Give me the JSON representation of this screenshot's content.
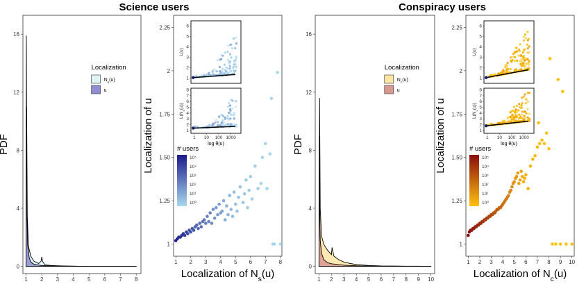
{
  "titles": {
    "science": "Science users",
    "conspiracy": "Conspiracy users"
  },
  "chart_data": [
    {
      "id": "sci-pdf",
      "type": "area",
      "title": "",
      "xlabel": "",
      "ylabel": "PDF",
      "xlim": [
        0.8,
        8.3
      ],
      "ylim": [
        -0.5,
        17.3
      ],
      "xticks": [
        "1",
        "2",
        "3",
        "4",
        "5",
        "6",
        "7",
        "8"
      ],
      "yticks": [
        "0",
        "4",
        "8",
        "12",
        "16"
      ],
      "legend": {
        "title": "Localization",
        "entries": [
          "N_s(u)",
          "u"
        ],
        "colors": [
          "#dff3f5",
          "#8e8ed0"
        ],
        "position": "top-right"
      },
      "series": [
        {
          "name": "N_s(u)",
          "color": "#dff3f5",
          "x": [
            1,
            1.04,
            1.08,
            1.15,
            1.3,
            1.5,
            1.8,
            1.95,
            2.0,
            2.05,
            2.2,
            2.6,
            3,
            3.5,
            4,
            5,
            6,
            7,
            8
          ],
          "y": [
            0,
            11,
            3.5,
            1.4,
            0.7,
            0.35,
            0.2,
            0.35,
            0.65,
            0.35,
            0.1,
            0.06,
            0.04,
            0.02,
            0.01,
            0,
            0,
            0,
            0
          ]
        },
        {
          "name": "u",
          "color": "#8e8ed0",
          "x": [
            1,
            1.02,
            1.04,
            1.06,
            1.1,
            1.2,
            1.3,
            1.5,
            2,
            3,
            4,
            5,
            6,
            7,
            8
          ],
          "y": [
            0,
            15.9,
            9,
            3.5,
            1.5,
            0.6,
            0.3,
            0.15,
            0.05,
            0.02,
            0.01,
            0,
            0,
            0,
            0
          ]
        }
      ]
    },
    {
      "id": "sci-scatter",
      "type": "scatter",
      "title": "",
      "xlabel": "Localization of N_s(u)",
      "ylabel": "Localization of u",
      "xlim": [
        0.85,
        8.1
      ],
      "ylim": [
        0.93,
        2.32
      ],
      "xticks": [
        "1",
        "2",
        "3",
        "4",
        "5",
        "6",
        "7",
        "8"
      ],
      "yticks": [
        "1",
        "1.25",
        "1.50",
        "1.75",
        "2",
        "2.25"
      ],
      "legend": {
        "title": "# users",
        "labels": [
          "10⁵",
          "10⁴",
          "10³",
          "10²",
          "10¹",
          "10⁰"
        ],
        "gradient": [
          "#1a1a8a",
          "#a8d8ec"
        ],
        "position": "left"
      },
      "points": [
        [
          1.0,
          1.02,
          5
        ],
        [
          1.1,
          1.03,
          4.8
        ],
        [
          1.2,
          1.04,
          4.6
        ],
        [
          1.3,
          1.04,
          4.5
        ],
        [
          1.4,
          1.05,
          4.4
        ],
        [
          1.5,
          1.06,
          4.2
        ],
        [
          1.6,
          1.05,
          4.0
        ],
        [
          1.7,
          1.07,
          3.9
        ],
        [
          1.8,
          1.06,
          3.8
        ],
        [
          1.9,
          1.08,
          3.6
        ],
        [
          2.0,
          1.07,
          3.5
        ],
        [
          2.1,
          1.09,
          3.4
        ],
        [
          2.2,
          1.08,
          3.3
        ],
        [
          2.3,
          1.1,
          3.2
        ],
        [
          2.4,
          1.11,
          3.0
        ],
        [
          2.5,
          1.09,
          2.9
        ],
        [
          2.6,
          1.12,
          2.8
        ],
        [
          2.7,
          1.1,
          2.7
        ],
        [
          2.8,
          1.13,
          2.6
        ],
        [
          2.9,
          1.14,
          2.5
        ],
        [
          3.0,
          1.12,
          2.4
        ],
        [
          3.1,
          1.16,
          2.3
        ],
        [
          3.2,
          1.13,
          2.2
        ],
        [
          3.3,
          1.18,
          2.1
        ],
        [
          3.4,
          1.12,
          2.0
        ],
        [
          3.5,
          1.2,
          1.9
        ],
        [
          3.6,
          1.15,
          1.8
        ],
        [
          3.7,
          1.21,
          1.7
        ],
        [
          3.8,
          1.17,
          1.6
        ],
        [
          3.9,
          1.23,
          1.5
        ],
        [
          4.0,
          1.18,
          1.4
        ],
        [
          4.1,
          1.19,
          1.3
        ],
        [
          4.2,
          1.25,
          1.2
        ],
        [
          4.3,
          1.14,
          1.1
        ],
        [
          4.4,
          1.22,
          1.0
        ],
        [
          4.5,
          1.17,
          1.0
        ],
        [
          4.6,
          1.28,
          0.9
        ],
        [
          4.7,
          1.2,
          0.8
        ],
        [
          4.8,
          1.16,
          0.8
        ],
        [
          4.9,
          1.3,
          0.7
        ],
        [
          5.0,
          1.23,
          0.7
        ],
        [
          5.1,
          1.19,
          0.6
        ],
        [
          5.2,
          1.27,
          0.6
        ],
        [
          5.3,
          1.33,
          0.5
        ],
        [
          5.5,
          1.24,
          0.5
        ],
        [
          5.6,
          1.29,
          0.4
        ],
        [
          5.7,
          1.37,
          0.4
        ],
        [
          5.8,
          1.21,
          0.3
        ],
        [
          5.9,
          1.31,
          0.3
        ],
        [
          6.0,
          1.39,
          0.3
        ],
        [
          6.1,
          1.26,
          0.2
        ],
        [
          6.3,
          1.45,
          0.2
        ],
        [
          6.5,
          1.32,
          0.2
        ],
        [
          6.7,
          1.35,
          0.1
        ],
        [
          6.8,
          1.5,
          0.1
        ],
        [
          7.0,
          1.58,
          0.1
        ],
        [
          7.1,
          1.32,
          0.1
        ],
        [
          7.3,
          1.52,
          0.0
        ],
        [
          7.4,
          1.84,
          0.0
        ],
        [
          7.5,
          1.0,
          0.0
        ],
        [
          7.6,
          1.0,
          0.0
        ],
        [
          7.8,
          1.99,
          0.0
        ],
        [
          8.0,
          1.0,
          0.0
        ]
      ]
    },
    {
      "id": "sci-inset-top",
      "type": "scatter",
      "xlabel": "",
      "ylabel": "L(u)",
      "xlim": [
        0,
        4.5
      ],
      "ylim": [
        0.5,
        6.5
      ],
      "yticks": [
        "1",
        "2",
        "3",
        "4",
        "5",
        "6"
      ],
      "trend": [
        [
          0.2,
          1.05
        ],
        [
          4.0,
          1.35
        ]
      ]
    },
    {
      "id": "sci-inset-bottom",
      "type": "scatter",
      "xlabel": "log θ(u)",
      "ylabel": "L(N_s(u))",
      "xlim": [
        0,
        4.5
      ],
      "ylim": [
        0.5,
        8.3
      ],
      "xticks": [
        "1",
        "10",
        "100",
        "1000"
      ],
      "yticks": [
        "1",
        "2",
        "3",
        "4",
        "5",
        "6",
        "7",
        "8"
      ],
      "trend": [
        [
          0.2,
          1.4
        ],
        [
          4.0,
          1.7
        ]
      ]
    },
    {
      "id": "con-pdf",
      "type": "area",
      "title": "",
      "xlabel": "",
      "ylabel": "PDF",
      "xlim": [
        0.7,
        10.3
      ],
      "ylim": [
        -0.5,
        17.3
      ],
      "xticks": [
        "1",
        "2",
        "3",
        "4",
        "5",
        "6",
        "7",
        "8",
        "9",
        "10"
      ],
      "yticks": [
        "0",
        "4",
        "8",
        "12",
        "16"
      ],
      "legend": {
        "title": "Localization",
        "entries": [
          "N_c(u)",
          "u"
        ],
        "colors": [
          "#fde5a4",
          "#d79890"
        ],
        "position": "top-right"
      },
      "series": [
        {
          "name": "N_c(u)",
          "color": "#fde5a4",
          "x": [
            1,
            1.05,
            1.1,
            1.2,
            1.4,
            1.7,
            2.0,
            2.05,
            2.2,
            2.6,
            3,
            3.5,
            4,
            5,
            6,
            7,
            8,
            9,
            10
          ],
          "y": [
            0,
            11.6,
            4,
            2.1,
            1.5,
            1.1,
            0.8,
            1.3,
            0.7,
            0.45,
            0.3,
            0.2,
            0.12,
            0.06,
            0.03,
            0.02,
            0.01,
            0.01,
            0
          ]
        },
        {
          "name": "u",
          "color": "#d79890",
          "x": [
            1,
            1.03,
            1.06,
            1.1,
            1.2,
            1.4,
            1.7,
            2,
            3,
            4,
            5,
            6,
            7,
            8,
            9,
            10
          ],
          "y": [
            0,
            9,
            4,
            1.8,
            0.9,
            0.45,
            0.25,
            0.18,
            0.08,
            0.04,
            0.02,
            0.01,
            0,
            0,
            0,
            0
          ]
        }
      ]
    },
    {
      "id": "con-scatter",
      "type": "scatter",
      "title": "",
      "xlabel": "Localization of N_c(u)",
      "ylabel": "Localization of u",
      "xlim": [
        0.8,
        10.2
      ],
      "ylim": [
        0.93,
        2.32
      ],
      "xticks": [
        "1",
        "2",
        "3",
        "4",
        "5",
        "6",
        "7",
        "8",
        "9",
        "10"
      ],
      "yticks": [
        "1",
        "1.25",
        "1.50",
        "1.75",
        "2",
        "2.25"
      ],
      "legend": {
        "title": "# users",
        "labels": [
          "10⁵",
          "10⁴",
          "10³",
          "10²",
          "10¹",
          "10⁰"
        ],
        "gradient": [
          "#8b0e0e",
          "#ffc20f"
        ],
        "position": "left"
      },
      "points": [
        [
          1.0,
          1.05,
          5
        ],
        [
          1.1,
          1.07,
          4.9
        ],
        [
          1.2,
          1.08,
          4.8
        ],
        [
          1.3,
          1.08,
          4.7
        ],
        [
          1.4,
          1.09,
          4.6
        ],
        [
          1.5,
          1.09,
          4.6
        ],
        [
          1.6,
          1.1,
          4.5
        ],
        [
          1.7,
          1.1,
          4.4
        ],
        [
          1.8,
          1.11,
          4.3
        ],
        [
          1.9,
          1.11,
          4.3
        ],
        [
          2.0,
          1.12,
          4.2
        ],
        [
          2.1,
          1.12,
          4.1
        ],
        [
          2.2,
          1.13,
          4.0
        ],
        [
          2.3,
          1.13,
          3.9
        ],
        [
          2.4,
          1.14,
          3.8
        ],
        [
          2.5,
          1.14,
          3.8
        ],
        [
          2.6,
          1.15,
          3.7
        ],
        [
          2.7,
          1.15,
          3.6
        ],
        [
          2.8,
          1.16,
          3.5
        ],
        [
          2.9,
          1.16,
          3.4
        ],
        [
          3.0,
          1.17,
          3.3
        ],
        [
          3.1,
          1.17,
          3.2
        ],
        [
          3.2,
          1.18,
          3.1
        ],
        [
          3.3,
          1.18,
          3.0
        ],
        [
          3.4,
          1.19,
          2.9
        ],
        [
          3.5,
          1.2,
          2.8
        ],
        [
          3.6,
          1.2,
          2.7
        ],
        [
          3.7,
          1.21,
          2.6
        ],
        [
          3.8,
          1.21,
          2.5
        ],
        [
          3.9,
          1.22,
          2.4
        ],
        [
          4.0,
          1.23,
          2.3
        ],
        [
          4.1,
          1.24,
          2.2
        ],
        [
          4.2,
          1.25,
          2.1
        ],
        [
          4.3,
          1.26,
          2.0
        ],
        [
          4.4,
          1.27,
          1.9
        ],
        [
          4.5,
          1.28,
          1.8
        ],
        [
          4.6,
          1.3,
          1.7
        ],
        [
          4.7,
          1.31,
          1.6
        ],
        [
          4.8,
          1.33,
          1.5
        ],
        [
          4.9,
          1.35,
          1.4
        ],
        [
          5.0,
          1.36,
          1.3
        ],
        [
          5.1,
          1.38,
          1.2
        ],
        [
          5.2,
          1.39,
          1.1
        ],
        [
          5.3,
          1.41,
          1.0
        ],
        [
          5.4,
          1.35,
          0.9
        ],
        [
          5.5,
          1.37,
          0.8
        ],
        [
          5.6,
          1.42,
          0.8
        ],
        [
          5.7,
          1.39,
          0.7
        ],
        [
          5.8,
          1.36,
          0.6
        ],
        [
          5.9,
          1.38,
          0.5
        ],
        [
          6.0,
          1.4,
          0.5
        ],
        [
          6.2,
          1.32,
          0.4
        ],
        [
          6.4,
          1.45,
          0.3
        ],
        [
          6.6,
          1.49,
          0.3
        ],
        [
          6.8,
          1.51,
          0.2
        ],
        [
          7.0,
          1.56,
          0.2
        ],
        [
          7.1,
          1.7,
          0.1
        ],
        [
          7.2,
          1.58,
          0.1
        ],
        [
          7.4,
          1.6,
          0.1
        ],
        [
          7.6,
          1.58,
          0.05
        ],
        [
          7.8,
          1.64,
          0.0
        ],
        [
          8.0,
          1.55,
          0.0
        ],
        [
          8.1,
          2.07,
          0.0
        ],
        [
          8.3,
          1.0,
          0.0
        ],
        [
          8.6,
          1.0,
          0.0
        ],
        [
          8.8,
          1.95,
          0.0
        ],
        [
          9.0,
          1.0,
          0.0
        ],
        [
          9.2,
          1.88,
          0.0
        ],
        [
          9.5,
          1.0,
          0.0
        ],
        [
          10.0,
          1.0,
          0.0
        ]
      ]
    },
    {
      "id": "con-inset-top",
      "type": "scatter",
      "xlabel": "",
      "ylabel": "L(u)",
      "xlim": [
        0,
        4.5
      ],
      "ylim": [
        0.5,
        6.5
      ],
      "yticks": [
        "1",
        "2",
        "3",
        "4",
        "5",
        "6"
      ],
      "trend": [
        [
          0.2,
          1.05
        ],
        [
          4.0,
          1.8
        ]
      ]
    },
    {
      "id": "con-inset-bottom",
      "type": "scatter",
      "xlabel": "log θ(u)",
      "ylabel": "L(N_c(u))",
      "xlim": [
        0,
        4.5
      ],
      "ylim": [
        0.5,
        8.3
      ],
      "xticks": [
        "1",
        "10",
        "100",
        "1000"
      ],
      "yticks": [
        "1",
        "2",
        "3",
        "4",
        "5",
        "6",
        "7",
        "8"
      ],
      "trend": [
        [
          0.2,
          1.8
        ],
        [
          4.0,
          2.6
        ]
      ]
    }
  ]
}
